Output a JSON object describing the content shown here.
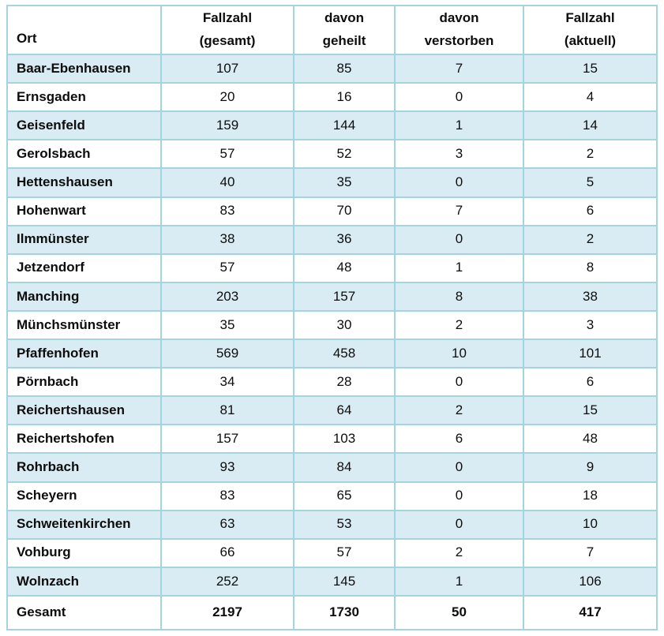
{
  "table": {
    "header": {
      "ort": "Ort",
      "cols": [
        {
          "line1": "Fallzahl",
          "line2": "(gesamt)"
        },
        {
          "line1": "davon",
          "line2": "geheilt"
        },
        {
          "line1": "davon",
          "line2": "verstorben"
        },
        {
          "line1": "Fallzahl",
          "line2": "(aktuell)"
        }
      ]
    },
    "rows": [
      {
        "ort": "Baar-Ebenhausen",
        "values": [
          "107",
          "85",
          "7",
          "15"
        ]
      },
      {
        "ort": "Ernsgaden",
        "values": [
          "20",
          "16",
          "0",
          "4"
        ]
      },
      {
        "ort": "Geisenfeld",
        "values": [
          "159",
          "144",
          "1",
          "14"
        ]
      },
      {
        "ort": "Gerolsbach",
        "values": [
          "57",
          "52",
          "3",
          "2"
        ]
      },
      {
        "ort": "Hettenshausen",
        "values": [
          "40",
          "35",
          "0",
          "5"
        ]
      },
      {
        "ort": "Hohenwart",
        "values": [
          "83",
          "70",
          "7",
          "6"
        ]
      },
      {
        "ort": "Ilmmünster",
        "values": [
          "38",
          "36",
          "0",
          "2"
        ]
      },
      {
        "ort": "Jetzendorf",
        "values": [
          "57",
          "48",
          "1",
          "8"
        ]
      },
      {
        "ort": "Manching",
        "values": [
          "203",
          "157",
          "8",
          "38"
        ]
      },
      {
        "ort": "Münchsmünster",
        "values": [
          "35",
          "30",
          "2",
          "3"
        ]
      },
      {
        "ort": "Pfaffenhofen",
        "values": [
          "569",
          "458",
          "10",
          "101"
        ]
      },
      {
        "ort": "Pörnbach",
        "values": [
          "34",
          "28",
          "0",
          "6"
        ]
      },
      {
        "ort": "Reichertshausen",
        "values": [
          "81",
          "64",
          "2",
          "15"
        ]
      },
      {
        "ort": "Reichertshofen",
        "values": [
          "157",
          "103",
          "6",
          "48"
        ]
      },
      {
        "ort": "Rohrbach",
        "values": [
          "93",
          "84",
          "0",
          "9"
        ]
      },
      {
        "ort": "Scheyern",
        "values": [
          "83",
          "65",
          "0",
          "18"
        ]
      },
      {
        "ort": "Schweitenkirchen",
        "values": [
          "63",
          "53",
          "0",
          "10"
        ]
      },
      {
        "ort": "Vohburg",
        "values": [
          "66",
          "57",
          "2",
          "7"
        ]
      },
      {
        "ort": "Wolnzach",
        "values": [
          "252",
          "145",
          "1",
          "106"
        ]
      }
    ],
    "total": {
      "ort": "Gesamt",
      "values": [
        "2197",
        "1730",
        "50",
        "417"
      ]
    }
  },
  "colors": {
    "row_shade": "#d9ecf3",
    "grid_line": "#a3d5e1",
    "text": "#0d0d0d"
  }
}
